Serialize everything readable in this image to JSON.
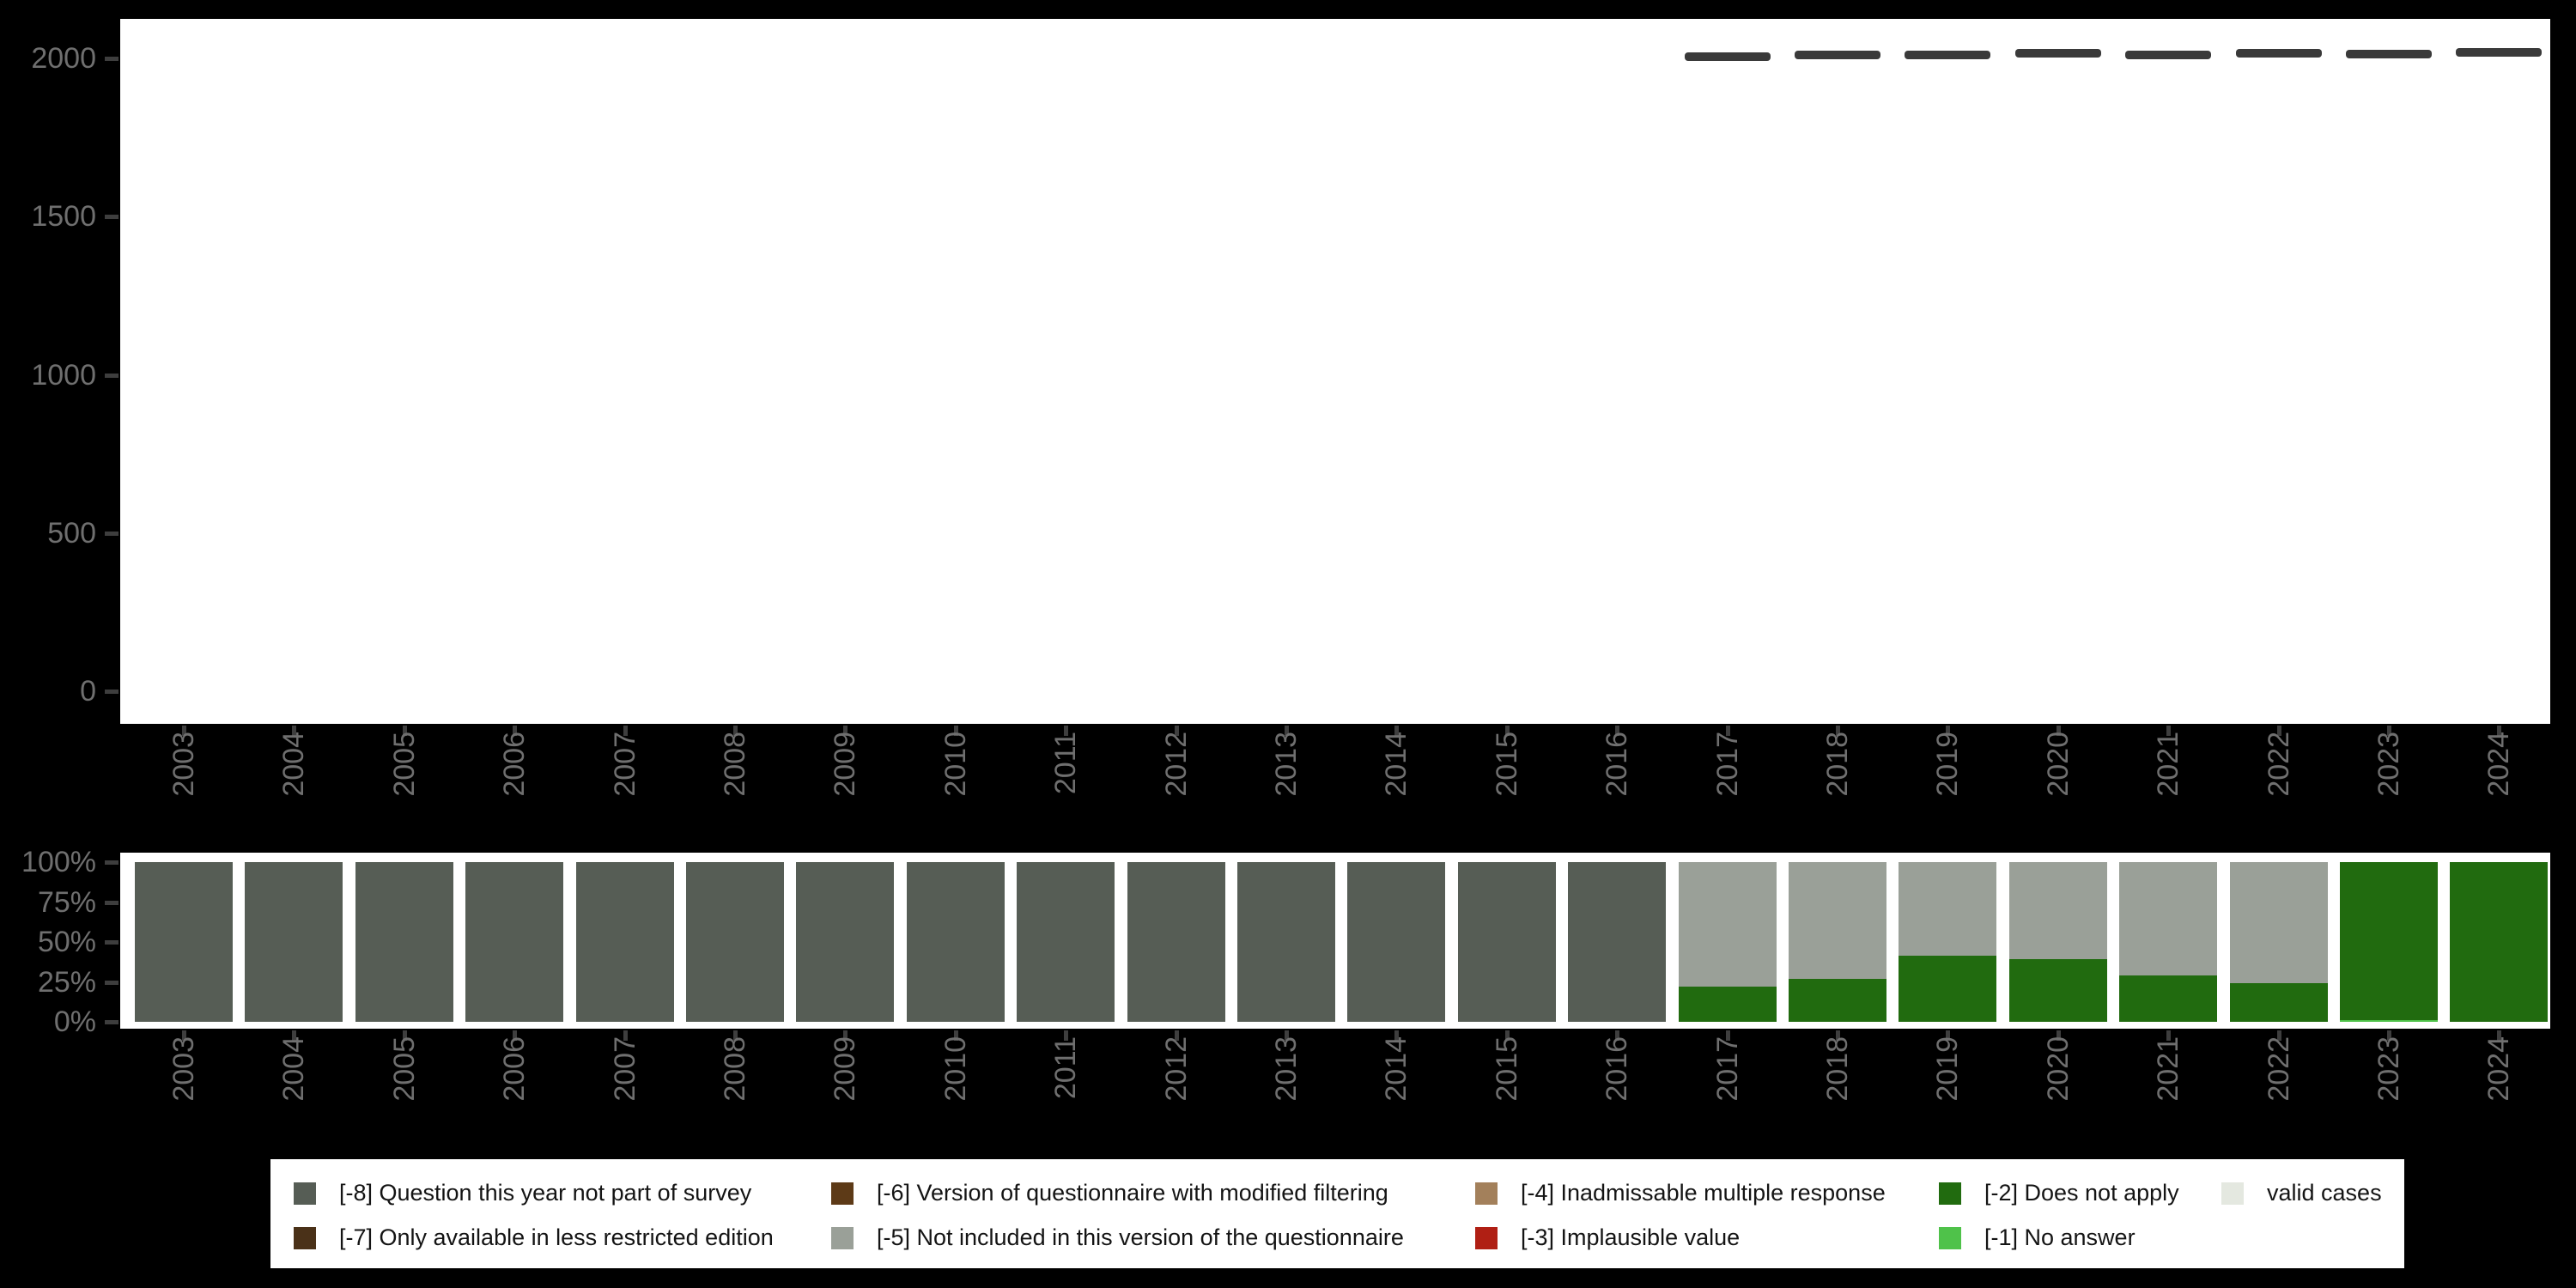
{
  "title": "",
  "colors": {
    "-8": "#565d55",
    "-7": "#4a3118",
    "-6": "#5d3a17",
    "-5": "#9aa098",
    "-4": "#a3805b",
    "-3": "#b01f14",
    "-2": "#216b0f",
    "-1": "#4fc24a",
    "valid": "#e4e8e0",
    "dash_marker": "#3a3a3a",
    "axis_tick": "#3e3e3e",
    "axis_label": "#6f6f6f",
    "legend_text": "#141414",
    "background": "#000000",
    "panel_background": "#ffffff"
  },
  "legend": {
    "rows": [
      [
        {
          "key": "-8",
          "label": "[-8] Question this year not part of survey"
        },
        {
          "key": "-6",
          "label": "[-6] Version of questionnaire with modified filtering"
        },
        {
          "key": "-4",
          "label": "[-4] Inadmissable multiple response"
        },
        {
          "key": "-2",
          "label": "[-2] Does not apply"
        },
        {
          "key": "valid",
          "label": "valid cases"
        }
      ],
      [
        {
          "key": "-7",
          "label": "[-7] Only available in less restricted edition"
        },
        {
          "key": "-5",
          "label": "[-5] Not included in this version of the questionnaire"
        },
        {
          "key": "-3",
          "label": "[-3] Implausible value"
        },
        {
          "key": "-1",
          "label": "[-1] No answer"
        }
      ]
    ]
  },
  "chart_data": [
    {
      "type": "scatter",
      "title": "Number of cases per survey year",
      "marker": "horizontal-dash",
      "x": [
        "2003",
        "2004",
        "2005",
        "2006",
        "2007",
        "2008",
        "2009",
        "2010",
        "2011",
        "2012",
        "2013",
        "2014",
        "2015",
        "2016",
        "2017",
        "2018",
        "2019",
        "2020",
        "2021",
        "2022",
        "2023",
        "2024"
      ],
      "values": [
        null,
        null,
        null,
        null,
        null,
        null,
        null,
        null,
        null,
        null,
        null,
        null,
        null,
        null,
        2005,
        2010,
        2012,
        2016,
        2011,
        2016,
        2014,
        2018
      ],
      "ylim": [
        0,
        2150
      ],
      "yticks": [
        0,
        500,
        1000,
        1500,
        2000
      ],
      "ytick_labels": [
        "0",
        "500",
        "1000",
        "1500",
        "2000"
      ],
      "grid": false,
      "legend_position": "none"
    },
    {
      "type": "bar",
      "stacked": true,
      "unit": "percent",
      "title": "Distribution of missing-value codes per survey year",
      "categories": [
        "2003",
        "2004",
        "2005",
        "2006",
        "2007",
        "2008",
        "2009",
        "2010",
        "2011",
        "2012",
        "2013",
        "2014",
        "2015",
        "2016",
        "2017",
        "2018",
        "2019",
        "2020",
        "2021",
        "2022",
        "2023",
        "2024"
      ],
      "stack_order_note": "series listed bottom-to-top",
      "series": [
        {
          "name": "[-1] No answer",
          "key": "-1",
          "values": [
            0,
            0,
            0,
            0,
            0,
            0,
            0,
            0,
            0,
            0,
            0,
            0,
            0,
            0,
            0,
            0,
            0,
            0,
            0,
            0,
            1,
            0
          ]
        },
        {
          "name": "[-2] Does not apply",
          "key": "-2",
          "values": [
            0,
            0,
            0,
            0,
            0,
            0,
            0,
            0,
            0,
            0,
            0,
            0,
            0,
            0,
            22,
            27,
            41.5,
            39,
            29,
            24,
            99,
            100
          ]
        },
        {
          "name": "[-5] Not included in this version of the questionnaire",
          "key": "-5",
          "values": [
            0,
            0,
            0,
            0,
            0,
            0,
            0,
            0,
            0,
            0,
            0,
            0,
            0,
            0,
            78,
            73,
            58.5,
            61,
            71,
            76,
            0,
            0
          ]
        },
        {
          "name": "[-8] Question this year not part of survey",
          "key": "-8",
          "values": [
            100,
            100,
            100,
            100,
            100,
            100,
            100,
            100,
            100,
            100,
            100,
            100,
            100,
            100,
            0,
            0,
            0,
            0,
            0,
            0,
            0,
            0
          ]
        }
      ],
      "ylim": [
        0,
        100
      ],
      "yticks": [
        0,
        25,
        50,
        75,
        100
      ],
      "ytick_labels": [
        "0%",
        "25%",
        "50%",
        "75%",
        "100%"
      ],
      "grid": false,
      "legend_position": "bottom"
    }
  ]
}
